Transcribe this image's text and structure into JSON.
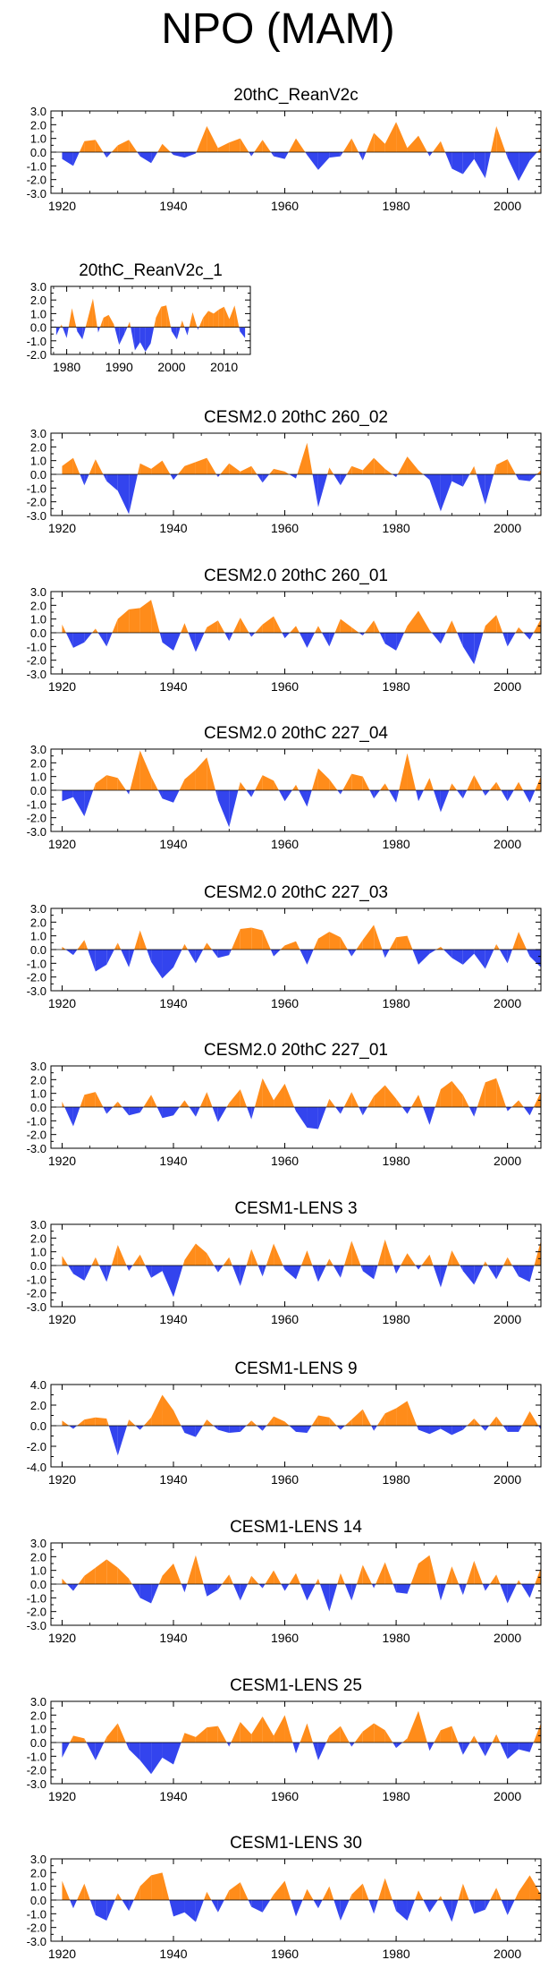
{
  "figure_title": "NPO (MAM)",
  "colors": {
    "positive": "#ff8c1a",
    "negative": "#3344ee",
    "axis": "#000000"
  },
  "chart_data": [
    {
      "type": "area",
      "title": "20thC_ReanV2c",
      "x": [
        1920,
        1922,
        1924,
        1926,
        1928,
        1930,
        1932,
        1934,
        1936,
        1938,
        1940,
        1942,
        1944,
        1946,
        1948,
        1950,
        1952,
        1954,
        1956,
        1958,
        1960,
        1962,
        1964,
        1966,
        1968,
        1970,
        1972,
        1974,
        1976,
        1978,
        1980,
        1982,
        1984,
        1986,
        1988,
        1990,
        1992,
        1994,
        1996,
        1998,
        2000,
        2002,
        2004,
        2006
      ],
      "values": [
        -0.5,
        -1.0,
        0.8,
        0.9,
        -0.4,
        0.5,
        0.9,
        -0.3,
        -0.8,
        0.6,
        -0.2,
        -0.4,
        -0.1,
        1.9,
        0.3,
        0.7,
        1.0,
        -0.3,
        0.9,
        -0.3,
        -0.5,
        1.0,
        -0.2,
        -1.3,
        -0.4,
        -0.3,
        1.0,
        -0.6,
        1.4,
        0.6,
        2.2,
        0.3,
        1.2,
        -0.3,
        0.8,
        -1.2,
        -1.6,
        -0.5,
        -1.9,
        1.9,
        -0.4,
        -2.1,
        -0.6,
        0.3
      ],
      "ylim": [
        -3.0,
        3.0
      ],
      "yticks": [
        "3.0",
        "2.0",
        "1.0",
        "0.0",
        "-1.0",
        "-2.0",
        "-3.0"
      ],
      "xticks": [
        "1920",
        "1940",
        "1960",
        "1980",
        "2000"
      ],
      "xlim": [
        1918,
        2006
      ]
    },
    {
      "type": "area",
      "title": "20thC_ReanV2c_1",
      "x": [
        1978,
        1979,
        1980,
        1981,
        1982,
        1983,
        1984,
        1985,
        1986,
        1987,
        1988,
        1989,
        1990,
        1991,
        1992,
        1993,
        1994,
        1995,
        1996,
        1997,
        1998,
        1999,
        2000,
        2001,
        2002,
        2003,
        2004,
        2005,
        2006,
        2007,
        2008,
        2009,
        2010,
        2011,
        2012,
        2013,
        2014
      ],
      "values": [
        -0.6,
        0.2,
        -0.8,
        1.4,
        -0.3,
        -0.9,
        0.6,
        2.1,
        -0.4,
        0.7,
        0.9,
        0.2,
        -1.3,
        -0.5,
        0.4,
        -1.7,
        -1.1,
        -1.8,
        -1.2,
        0.7,
        1.5,
        1.6,
        -0.3,
        -0.9,
        0.5,
        -0.6,
        1.1,
        -0.2,
        0.7,
        1.2,
        1.0,
        1.3,
        1.5,
        0.6,
        1.6,
        -0.3,
        -0.8
      ],
      "ylim": [
        -2.0,
        3.0
      ],
      "yticks": [
        "3.0",
        "2.0",
        "1.0",
        "0.0",
        "-1.0",
        "-2.0"
      ],
      "xticks": [
        "1980",
        "1990",
        "2000",
        "2010"
      ],
      "xlim": [
        1977,
        2015
      ]
    },
    {
      "type": "area",
      "title": "CESM2.0 20thC 260_02",
      "x": [
        1920,
        1922,
        1924,
        1926,
        1928,
        1930,
        1932,
        1934,
        1936,
        1938,
        1940,
        1942,
        1944,
        1946,
        1948,
        1950,
        1952,
        1954,
        1956,
        1958,
        1960,
        1962,
        1964,
        1966,
        1968,
        1970,
        1972,
        1974,
        1976,
        1978,
        1980,
        1982,
        1984,
        1986,
        1988,
        1990,
        1992,
        1994,
        1996,
        1998,
        2000,
        2002,
        2004,
        2006
      ],
      "values": [
        0.6,
        1.2,
        -0.8,
        1.1,
        -0.5,
        -1.2,
        -2.9,
        0.8,
        0.4,
        1.0,
        -0.4,
        0.6,
        0.9,
        1.2,
        -0.2,
        0.8,
        0.2,
        0.6,
        -0.6,
        0.4,
        0.2,
        -0.3,
        2.3,
        -2.4,
        0.5,
        -0.8,
        0.6,
        0.3,
        1.2,
        0.4,
        -0.2,
        1.3,
        0.3,
        -0.4,
        -2.7,
        -0.5,
        -0.9,
        0.6,
        -2.2,
        0.7,
        1.1,
        -0.4,
        -0.5,
        0.3
      ],
      "ylim": [
        -3.0,
        3.0
      ],
      "yticks": [
        "3.0",
        "2.0",
        "1.0",
        "0.0",
        "-1.0",
        "-2.0",
        "-3.0"
      ],
      "xticks": [
        "1920",
        "1940",
        "1960",
        "1980",
        "2000"
      ],
      "xlim": [
        1918,
        2006
      ]
    },
    {
      "type": "area",
      "title": "CESM2.0 20thC 260_01",
      "x": [
        1920,
        1922,
        1924,
        1926,
        1928,
        1930,
        1932,
        1934,
        1936,
        1938,
        1940,
        1942,
        1944,
        1946,
        1948,
        1950,
        1952,
        1954,
        1956,
        1958,
        1960,
        1962,
        1964,
        1966,
        1968,
        1970,
        1972,
        1974,
        1976,
        1978,
        1980,
        1982,
        1984,
        1986,
        1988,
        1990,
        1992,
        1994,
        1996,
        1998,
        2000,
        2002,
        2004,
        2006
      ],
      "values": [
        0.6,
        -1.1,
        -0.7,
        0.3,
        -1.0,
        1.0,
        1.7,
        1.8,
        2.4,
        -0.7,
        -1.3,
        0.7,
        -1.4,
        0.4,
        0.9,
        -0.6,
        1.1,
        -0.3,
        0.6,
        1.2,
        -0.4,
        0.5,
        -1.1,
        0.5,
        -1.0,
        1.0,
        0.4,
        -0.2,
        0.9,
        -0.8,
        -1.3,
        0.5,
        1.6,
        0.2,
        -0.8,
        0.9,
        -1.0,
        -2.3,
        0.5,
        1.3,
        -1.0,
        0.4,
        -0.5,
        1.0
      ],
      "ylim": [
        -3.0,
        3.0
      ],
      "yticks": [
        "3.0",
        "2.0",
        "1.0",
        "0.0",
        "-1.0",
        "-2.0",
        "-3.0"
      ],
      "xticks": [
        "1920",
        "1940",
        "1960",
        "1980",
        "2000"
      ],
      "xlim": [
        1918,
        2006
      ]
    },
    {
      "type": "area",
      "title": "CESM2.0 20thC 227_04",
      "x": [
        1920,
        1922,
        1924,
        1926,
        1928,
        1930,
        1932,
        1934,
        1936,
        1938,
        1940,
        1942,
        1944,
        1946,
        1948,
        1950,
        1952,
        1954,
        1956,
        1958,
        1960,
        1962,
        1964,
        1966,
        1968,
        1970,
        1972,
        1974,
        1976,
        1978,
        1980,
        1982,
        1984,
        1986,
        1988,
        1990,
        1992,
        1994,
        1996,
        1998,
        2000,
        2002,
        2004,
        2006
      ],
      "values": [
        -0.8,
        -0.5,
        -1.9,
        0.5,
        1.1,
        0.9,
        -0.3,
        2.9,
        1.0,
        -0.6,
        -0.9,
        0.8,
        1.5,
        2.4,
        -0.7,
        -2.7,
        0.6,
        -0.5,
        1.1,
        0.7,
        -0.8,
        0.4,
        -1.2,
        1.6,
        0.8,
        -0.3,
        1.2,
        1.0,
        -0.6,
        0.5,
        -0.9,
        2.7,
        -0.8,
        0.9,
        -1.6,
        0.5,
        -0.6,
        1.1,
        -0.4,
        0.6,
        -0.8,
        0.6,
        -0.9,
        1.0
      ],
      "ylim": [
        -3.0,
        3.0
      ],
      "yticks": [
        "3.0",
        "2.0",
        "1.0",
        "0.0",
        "-1.0",
        "-2.0",
        "-3.0"
      ],
      "xticks": [
        "1920",
        "1940",
        "1960",
        "1980",
        "2000"
      ],
      "xlim": [
        1918,
        2006
      ]
    },
    {
      "type": "area",
      "title": "CESM2.0 20thC 227_03",
      "x": [
        1920,
        1922,
        1924,
        1926,
        1928,
        1930,
        1932,
        1934,
        1936,
        1938,
        1940,
        1942,
        1944,
        1946,
        1948,
        1950,
        1952,
        1954,
        1956,
        1958,
        1960,
        1962,
        1964,
        1966,
        1968,
        1970,
        1972,
        1974,
        1976,
        1978,
        1980,
        1982,
        1984,
        1986,
        1988,
        1990,
        1992,
        1994,
        1996,
        1998,
        2000,
        2002,
        2004,
        2006
      ],
      "values": [
        0.2,
        -0.4,
        0.7,
        -1.6,
        -1.1,
        0.5,
        -1.3,
        1.4,
        -0.9,
        -2.1,
        -1.3,
        0.4,
        -1.0,
        0.5,
        -0.6,
        -0.4,
        1.5,
        1.6,
        1.4,
        -0.5,
        0.3,
        0.6,
        -1.1,
        0.8,
        1.3,
        0.9,
        -0.5,
        0.7,
        1.8,
        -0.6,
        0.9,
        1.0,
        -1.1,
        -0.3,
        0.2,
        -0.6,
        -1.1,
        -0.3,
        -1.4,
        0.4,
        -1.0,
        1.3,
        -0.5,
        -1.3
      ],
      "ylim": [
        -3.0,
        3.0
      ],
      "yticks": [
        "3.0",
        "2.0",
        "1.0",
        "0.0",
        "-1.0",
        "-2.0",
        "-3.0"
      ],
      "xticks": [
        "1920",
        "1940",
        "1960",
        "1980",
        "2000"
      ],
      "xlim": [
        1918,
        2006
      ]
    },
    {
      "type": "area",
      "title": "CESM2.0 20thC 227_01",
      "x": [
        1920,
        1922,
        1924,
        1926,
        1928,
        1930,
        1932,
        1934,
        1936,
        1938,
        1940,
        1942,
        1944,
        1946,
        1948,
        1950,
        1952,
        1954,
        1956,
        1958,
        1960,
        1962,
        1964,
        1966,
        1968,
        1970,
        1972,
        1974,
        1976,
        1978,
        1980,
        1982,
        1984,
        1986,
        1988,
        1990,
        1992,
        1994,
        1996,
        1998,
        2000,
        2002,
        2004,
        2006
      ],
      "values": [
        0.4,
        -1.4,
        0.9,
        1.1,
        -0.5,
        0.4,
        -0.6,
        -0.4,
        0.9,
        -0.8,
        -0.6,
        0.5,
        -0.7,
        1.1,
        -1.1,
        0.3,
        1.3,
        -0.9,
        2.1,
        0.5,
        1.7,
        -0.3,
        -1.5,
        -1.6,
        0.6,
        -0.5,
        1.1,
        -0.6,
        0.8,
        1.6,
        0.6,
        -0.5,
        0.9,
        -1.3,
        1.3,
        1.9,
        0.9,
        -0.7,
        1.8,
        2.1,
        -0.3,
        0.5,
        -0.6,
        1.1
      ],
      "ylim": [
        -3.0,
        3.0
      ],
      "yticks": [
        "3.0",
        "2.0",
        "1.0",
        "0.0",
        "-1.0",
        "-2.0",
        "-3.0"
      ],
      "xticks": [
        "1920",
        "1940",
        "1960",
        "1980",
        "2000"
      ],
      "xlim": [
        1918,
        2006
      ]
    },
    {
      "type": "area",
      "title": "CESM1-LENS 3",
      "x": [
        1920,
        1922,
        1924,
        1926,
        1928,
        1930,
        1932,
        1934,
        1936,
        1938,
        1940,
        1942,
        1944,
        1946,
        1948,
        1950,
        1952,
        1954,
        1956,
        1958,
        1960,
        1962,
        1964,
        1966,
        1968,
        1970,
        1972,
        1974,
        1976,
        1978,
        1980,
        1982,
        1984,
        1986,
        1988,
        1990,
        1992,
        1994,
        1996,
        1998,
        2000,
        2002,
        2004,
        2006
      ],
      "values": [
        0.7,
        -0.6,
        -1.1,
        0.6,
        -1.2,
        1.5,
        -0.4,
        0.8,
        -0.9,
        -0.4,
        -2.3,
        0.4,
        1.6,
        0.9,
        -0.5,
        0.6,
        -1.5,
        1.2,
        -0.8,
        1.6,
        -0.3,
        -1.0,
        1.1,
        -1.2,
        0.5,
        -0.9,
        1.8,
        -0.4,
        -1.0,
        1.9,
        -0.6,
        0.9,
        -0.3,
        0.8,
        -1.6,
        1.1,
        -0.4,
        -1.4,
        0.3,
        -1.0,
        0.6,
        -0.8,
        -1.2,
        1.8
      ],
      "ylim": [
        -3.0,
        3.0
      ],
      "yticks": [
        "3.0",
        "2.0",
        "1.0",
        "0.0",
        "-1.0",
        "-2.0",
        "-3.0"
      ],
      "xticks": [
        "1920",
        "1940",
        "1960",
        "1980",
        "2000"
      ],
      "xlim": [
        1918,
        2006
      ]
    },
    {
      "type": "area",
      "title": "CESM1-LENS 9",
      "x": [
        1920,
        1922,
        1924,
        1926,
        1928,
        1930,
        1932,
        1934,
        1936,
        1938,
        1940,
        1942,
        1944,
        1946,
        1948,
        1950,
        1952,
        1954,
        1956,
        1958,
        1960,
        1962,
        1964,
        1966,
        1968,
        1970,
        1972,
        1974,
        1976,
        1978,
        1980,
        1982,
        1984,
        1986,
        1988,
        1990,
        1992,
        1994,
        1996,
        1998,
        2000,
        2002,
        2004,
        2006
      ],
      "values": [
        0.5,
        -0.3,
        0.6,
        0.8,
        0.7,
        -2.9,
        0.6,
        -0.4,
        0.8,
        3.0,
        1.5,
        -0.7,
        -1.1,
        0.6,
        -0.4,
        -0.7,
        -0.6,
        0.5,
        -0.5,
        0.9,
        0.4,
        -0.6,
        -0.7,
        1.0,
        0.8,
        -0.4,
        0.6,
        1.6,
        -0.5,
        1.2,
        1.7,
        2.4,
        -0.4,
        -0.8,
        -0.3,
        -0.9,
        -0.4,
        0.7,
        -0.5,
        0.9,
        -0.6,
        -0.6,
        1.4,
        -0.4
      ],
      "ylim": [
        -4.0,
        4.0
      ],
      "yticks": [
        "4.0",
        "2.0",
        "0.0",
        "-2.0",
        "-4.0"
      ],
      "xticks": [
        "1920",
        "1940",
        "1960",
        "1980",
        "2000"
      ],
      "xlim": [
        1918,
        2006
      ]
    },
    {
      "type": "area",
      "title": "CESM1-LENS 14",
      "x": [
        1920,
        1922,
        1924,
        1926,
        1928,
        1930,
        1932,
        1934,
        1936,
        1938,
        1940,
        1942,
        1944,
        1946,
        1948,
        1950,
        1952,
        1954,
        1956,
        1958,
        1960,
        1962,
        1964,
        1966,
        1968,
        1970,
        1972,
        1974,
        1976,
        1978,
        1980,
        1982,
        1984,
        1986,
        1988,
        1990,
        1992,
        1994,
        1996,
        1998,
        2000,
        2002,
        2004,
        2006
      ],
      "values": [
        0.4,
        -0.5,
        0.6,
        1.2,
        1.8,
        1.2,
        0.4,
        -1.0,
        -1.4,
        0.6,
        1.5,
        -0.6,
        2.1,
        -0.9,
        -0.4,
        0.7,
        -1.2,
        0.6,
        -0.3,
        1.0,
        -0.5,
        0.8,
        -1.2,
        0.4,
        -2.0,
        0.8,
        -1.2,
        1.4,
        -0.3,
        1.6,
        -0.6,
        -0.7,
        1.5,
        2.1,
        -1.2,
        1.3,
        -0.8,
        1.7,
        -0.5,
        0.7,
        -1.4,
        0.3,
        -1.0,
        1.2
      ],
      "ylim": [
        -3.0,
        3.0
      ],
      "yticks": [
        "3.0",
        "2.0",
        "1.0",
        "0.0",
        "-1.0",
        "-2.0",
        "-3.0"
      ],
      "xticks": [
        "1920",
        "1940",
        "1960",
        "1980",
        "2000"
      ],
      "xlim": [
        1918,
        2006
      ]
    },
    {
      "type": "area",
      "title": "CESM1-LENS 25",
      "x": [
        1920,
        1922,
        1924,
        1926,
        1928,
        1930,
        1932,
        1934,
        1936,
        1938,
        1940,
        1942,
        1944,
        1946,
        1948,
        1950,
        1952,
        1954,
        1956,
        1958,
        1960,
        1962,
        1964,
        1966,
        1968,
        1970,
        1972,
        1974,
        1976,
        1978,
        1980,
        1982,
        1984,
        1986,
        1988,
        1990,
        1992,
        1994,
        1996,
        1998,
        2000,
        2002,
        2004,
        2006
      ],
      "values": [
        -1.1,
        0.5,
        0.3,
        -1.3,
        0.4,
        1.4,
        -0.5,
        -1.3,
        -2.3,
        -1.1,
        -1.6,
        0.7,
        0.4,
        1.1,
        1.2,
        -0.3,
        1.5,
        0.6,
        1.9,
        0.5,
        2.0,
        -0.8,
        1.4,
        -1.3,
        0.5,
        1.2,
        -0.3,
        0.8,
        1.4,
        0.9,
        -0.4,
        0.3,
        2.3,
        -0.6,
        0.9,
        1.2,
        -0.9,
        0.5,
        -1.0,
        0.6,
        -1.2,
        -0.5,
        -0.7,
        1.4
      ],
      "ylim": [
        -3.0,
        3.0
      ],
      "yticks": [
        "3.0",
        "2.0",
        "1.0",
        "0.0",
        "-1.0",
        "-2.0",
        "-3.0"
      ],
      "xticks": [
        "1920",
        "1940",
        "1960",
        "1980",
        "2000"
      ],
      "xlim": [
        1918,
        2006
      ]
    },
    {
      "type": "area",
      "title": "CESM1-LENS 30",
      "x": [
        1920,
        1922,
        1924,
        1926,
        1928,
        1930,
        1932,
        1934,
        1936,
        1938,
        1940,
        1942,
        1944,
        1946,
        1948,
        1950,
        1952,
        1954,
        1956,
        1958,
        1960,
        1962,
        1964,
        1966,
        1968,
        1970,
        1972,
        1974,
        1976,
        1978,
        1980,
        1982,
        1984,
        1986,
        1988,
        1990,
        1992,
        1994,
        1996,
        1998,
        2000,
        2002,
        2004,
        2006
      ],
      "values": [
        1.4,
        -0.6,
        1.2,
        -1.1,
        -1.5,
        0.5,
        -0.8,
        1.0,
        1.8,
        2.0,
        -1.2,
        -0.9,
        -1.6,
        0.6,
        -0.9,
        0.7,
        1.3,
        -0.5,
        -0.9,
        0.4,
        1.4,
        -1.2,
        0.8,
        -0.6,
        1.0,
        -1.5,
        0.4,
        1.2,
        -1.0,
        1.6,
        -0.8,
        -1.5,
        0.7,
        -0.9,
        0.3,
        -1.6,
        1.2,
        -1.0,
        -0.7,
        0.9,
        -1.1,
        0.6,
        1.8,
        0.4
      ],
      "ylim": [
        -3.0,
        3.0
      ],
      "yticks": [
        "3.0",
        "2.0",
        "1.0",
        "0.0",
        "-1.0",
        "-2.0",
        "-3.0"
      ],
      "xticks": [
        "1920",
        "1940",
        "1960",
        "1980",
        "2000"
      ],
      "xlim": [
        1918,
        2006
      ]
    }
  ]
}
